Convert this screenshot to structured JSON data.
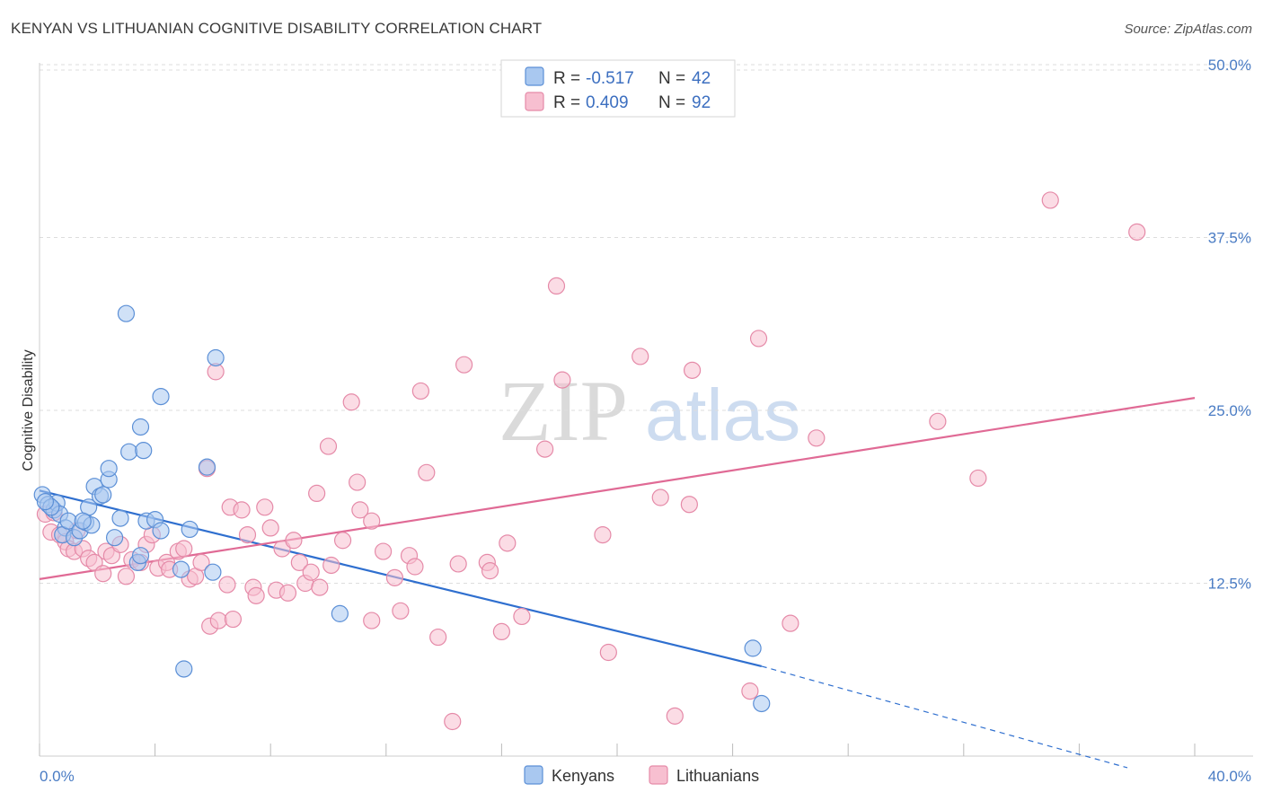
{
  "title": "KENYAN VS LITHUANIAN COGNITIVE DISABILITY CORRELATION CHART",
  "source": "Source: ZipAtlas.com",
  "watermark": {
    "zip": "ZIP",
    "atlas": "atlas"
  },
  "chart_data": {
    "type": "scatter",
    "ylabel": "Cognitive Disability",
    "xlim": [
      0,
      40
    ],
    "ylim": [
      0,
      52
    ],
    "x_tick_labels": [
      {
        "value": 0,
        "label": "0.0%"
      },
      {
        "value": 40,
        "label": "40.0%"
      }
    ],
    "y_tick_labels": [
      {
        "value": 12.5,
        "label": "12.5%"
      },
      {
        "value": 25,
        "label": "25.0%"
      },
      {
        "value": 37.5,
        "label": "37.5%"
      },
      {
        "value": 50,
        "label": "50.0%"
      }
    ],
    "x_minor_ticks": [
      0,
      4,
      8,
      12,
      16,
      20,
      24,
      28,
      32,
      36,
      40
    ],
    "grid": "horizontal dashed",
    "legend": {
      "placement": "top-center",
      "rows": [
        {
          "r_label": "R = ",
          "r_value": "-0.517",
          "n_label": "N = ",
          "n_value": "42"
        },
        {
          "r_label": "R = ",
          "r_value": "0.409",
          "n_label": "N = ",
          "n_value": "92"
        }
      ]
    },
    "colors": {
      "kenyans_fill": "#a9c8f0",
      "kenyans_stroke": "#5b8fd6",
      "kenyans_line": "#2f6fcf",
      "lithuanians_fill": "#f7bfd0",
      "lithuanians_stroke": "#e58aa8",
      "lithuanians_line": "#e06a95"
    },
    "series": [
      {
        "name": "Kenyans",
        "trend": {
          "x0": 0,
          "y0": 19.2,
          "x1": 25,
          "y1": 6.5,
          "dashed_to_x": 40,
          "dashed_to_y": -1.1
        },
        "points": [
          [
            0.1,
            18.9
          ],
          [
            0.3,
            18.2
          ],
          [
            0.5,
            17.8
          ],
          [
            0.6,
            18.3
          ],
          [
            0.7,
            17.5
          ],
          [
            0.4,
            18.0
          ],
          [
            0.9,
            16.5
          ],
          [
            0.8,
            16.0
          ],
          [
            1.0,
            17.0
          ],
          [
            1.2,
            15.8
          ],
          [
            1.4,
            16.3
          ],
          [
            1.6,
            16.9
          ],
          [
            1.7,
            18.0
          ],
          [
            1.8,
            16.7
          ],
          [
            1.9,
            19.5
          ],
          [
            2.1,
            18.8
          ],
          [
            2.2,
            18.9
          ],
          [
            2.4,
            20.0
          ],
          [
            2.4,
            20.8
          ],
          [
            2.6,
            15.8
          ],
          [
            2.8,
            17.2
          ],
          [
            3.0,
            32.0
          ],
          [
            3.1,
            22.0
          ],
          [
            3.4,
            14.0
          ],
          [
            3.5,
            14.5
          ],
          [
            3.5,
            23.8
          ],
          [
            3.6,
            22.1
          ],
          [
            3.7,
            17.0
          ],
          [
            4.0,
            17.1
          ],
          [
            4.2,
            26.0
          ],
          [
            4.2,
            16.3
          ],
          [
            4.9,
            13.5
          ],
          [
            5.0,
            6.3
          ],
          [
            5.2,
            16.4
          ],
          [
            5.8,
            20.9
          ],
          [
            6.0,
            13.3
          ],
          [
            6.1,
            28.8
          ],
          [
            10.4,
            10.3
          ],
          [
            24.7,
            7.8
          ],
          [
            25.0,
            3.8
          ],
          [
            0.2,
            18.4
          ],
          [
            1.5,
            17.0
          ]
        ]
      },
      {
        "name": "Lithuanians",
        "trend": {
          "x0": 0,
          "y0": 12.8,
          "x1": 40,
          "y1": 25.9
        },
        "points": [
          [
            0.2,
            17.5
          ],
          [
            0.4,
            16.2
          ],
          [
            0.5,
            17.6
          ],
          [
            0.7,
            16.0
          ],
          [
            0.9,
            15.5
          ],
          [
            1.0,
            15.0
          ],
          [
            1.2,
            14.8
          ],
          [
            1.3,
            16.3
          ],
          [
            1.5,
            15.0
          ],
          [
            1.7,
            14.3
          ],
          [
            1.9,
            14.0
          ],
          [
            2.2,
            13.2
          ],
          [
            2.3,
            14.8
          ],
          [
            2.5,
            14.5
          ],
          [
            2.8,
            15.3
          ],
          [
            3.0,
            13.0
          ],
          [
            3.2,
            14.2
          ],
          [
            3.5,
            14.0
          ],
          [
            3.7,
            15.3
          ],
          [
            3.9,
            16.0
          ],
          [
            4.1,
            13.6
          ],
          [
            4.4,
            14.0
          ],
          [
            4.5,
            13.5
          ],
          [
            4.8,
            14.8
          ],
          [
            5.0,
            15.0
          ],
          [
            5.2,
            12.8
          ],
          [
            5.4,
            13.0
          ],
          [
            5.6,
            14.0
          ],
          [
            5.8,
            20.8
          ],
          [
            5.9,
            9.4
          ],
          [
            6.1,
            27.8
          ],
          [
            6.2,
            9.8
          ],
          [
            6.5,
            12.4
          ],
          [
            6.6,
            18.0
          ],
          [
            6.7,
            9.9
          ],
          [
            7.0,
            17.8
          ],
          [
            7.2,
            16.0
          ],
          [
            7.4,
            12.2
          ],
          [
            7.5,
            11.6
          ],
          [
            7.8,
            18.0
          ],
          [
            8.0,
            16.5
          ],
          [
            8.2,
            12.0
          ],
          [
            8.4,
            15.0
          ],
          [
            8.6,
            11.8
          ],
          [
            8.8,
            15.6
          ],
          [
            9.0,
            14.0
          ],
          [
            9.2,
            12.5
          ],
          [
            9.4,
            13.3
          ],
          [
            9.6,
            19.0
          ],
          [
            9.7,
            12.2
          ],
          [
            10.0,
            22.4
          ],
          [
            10.1,
            13.8
          ],
          [
            10.5,
            15.6
          ],
          [
            10.8,
            25.6
          ],
          [
            11.0,
            19.8
          ],
          [
            11.1,
            17.8
          ],
          [
            11.5,
            17.0
          ],
          [
            11.5,
            9.8
          ],
          [
            11.9,
            14.8
          ],
          [
            12.3,
            12.9
          ],
          [
            12.5,
            10.5
          ],
          [
            12.8,
            14.5
          ],
          [
            13.0,
            13.7
          ],
          [
            13.2,
            26.4
          ],
          [
            13.4,
            20.5
          ],
          [
            13.8,
            8.6
          ],
          [
            14.3,
            2.5
          ],
          [
            14.5,
            13.9
          ],
          [
            14.7,
            28.3
          ],
          [
            15.5,
            14.0
          ],
          [
            15.6,
            13.4
          ],
          [
            16.0,
            9.0
          ],
          [
            16.2,
            15.4
          ],
          [
            16.7,
            10.1
          ],
          [
            17.5,
            22.2
          ],
          [
            17.9,
            34.0
          ],
          [
            18.1,
            27.2
          ],
          [
            19.5,
            16.0
          ],
          [
            19.7,
            7.5
          ],
          [
            20.8,
            28.9
          ],
          [
            21.5,
            18.7
          ],
          [
            22.0,
            2.9
          ],
          [
            22.5,
            18.2
          ],
          [
            22.6,
            27.9
          ],
          [
            24.6,
            4.7
          ],
          [
            24.9,
            30.2
          ],
          [
            26.0,
            9.6
          ],
          [
            26.9,
            23.0
          ],
          [
            31.1,
            24.2
          ],
          [
            32.5,
            20.1
          ],
          [
            35.0,
            40.2
          ],
          [
            38.0,
            37.9
          ]
        ]
      }
    ]
  },
  "bottom_legend": [
    "Kenyans",
    "Lithuanians"
  ]
}
